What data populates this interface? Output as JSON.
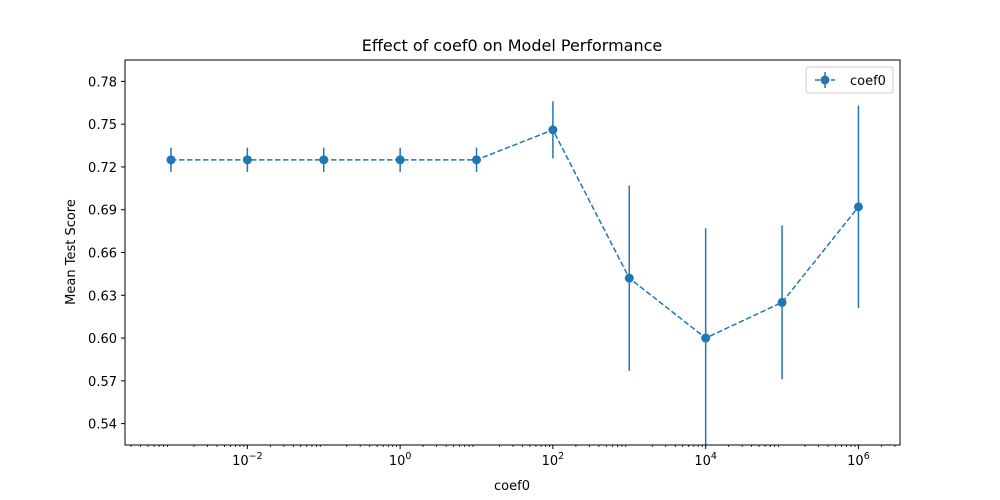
{
  "chart_data": {
    "type": "line",
    "title": "Effect of coef0 on Model Performance",
    "xlabel": "coef0",
    "ylabel": "Mean Test Score",
    "x_scale": "log",
    "xlim": [
      0.00025,
      3500000.0
    ],
    "ylim": [
      0.525,
      0.795
    ],
    "x_ticks": [
      0.01,
      1,
      100,
      10000,
      1000000
    ],
    "x_tick_labels": [
      {
        "base": "10",
        "exp": "−2"
      },
      {
        "base": "10",
        "exp": "0"
      },
      {
        "base": "10",
        "exp": "2"
      },
      {
        "base": "10",
        "exp": "4"
      },
      {
        "base": "10",
        "exp": "6"
      }
    ],
    "y_ticks": [
      0.54,
      0.57,
      0.6,
      0.63,
      0.66,
      0.69,
      0.72,
      0.75,
      0.78
    ],
    "y_tick_labels": [
      "0.54",
      "0.57",
      "0.60",
      "0.63",
      "0.66",
      "0.69",
      "0.72",
      "0.75",
      "0.78"
    ],
    "grid": false,
    "legend_position": "top-right",
    "series": [
      {
        "name": "coef0",
        "color": "#1f77b4",
        "line_style": "dashed",
        "marker": "circle",
        "x": [
          0.001,
          0.01,
          0.1,
          1,
          10,
          100,
          1000,
          10000,
          100000,
          1000000
        ],
        "y": [
          0.725,
          0.725,
          0.725,
          0.725,
          0.725,
          0.746,
          0.642,
          0.6,
          0.625,
          0.692
        ],
        "error": [
          0.0085,
          0.0085,
          0.0085,
          0.0085,
          0.0085,
          0.02,
          0.065,
          0.077,
          0.054,
          0.071
        ]
      }
    ]
  }
}
